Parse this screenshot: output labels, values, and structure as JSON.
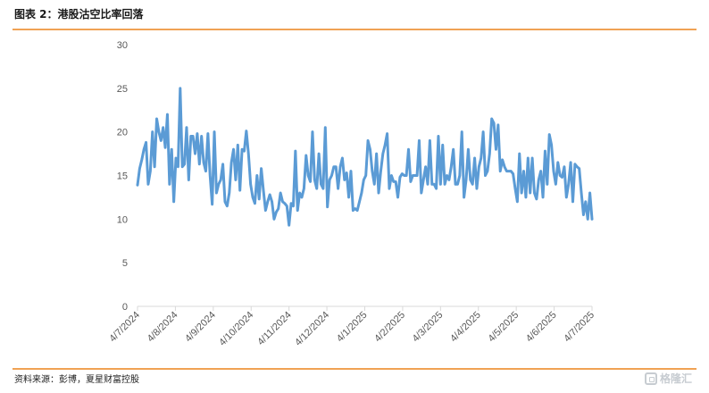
{
  "header": {
    "title": "图表 2：港股沽空比率回落"
  },
  "footer": {
    "source": "资料来源：彭博，夏星财富控股",
    "watermark": "格隆汇"
  },
  "colors": {
    "line": "#5b9bd5",
    "axis": "#d9d9d9",
    "rule": "#f0a254",
    "label": "#595959"
  },
  "chart_data": {
    "type": "line",
    "ylim": [
      0,
      30
    ],
    "yticks": [
      0,
      5,
      10,
      15,
      20,
      25,
      30
    ],
    "x_tick_labels": [
      "4/7/2024",
      "4/8/2024",
      "4/9/2024",
      "4/10/2024",
      "4/11/2024",
      "4/12/2024",
      "4/1/2025",
      "4/2/2025",
      "4/3/2025",
      "4/4/2025",
      "4/5/2025",
      "4/6/2025",
      "4/7/2025"
    ],
    "grid": false,
    "legend": "none",
    "series": [
      {
        "values": [
          13.9,
          15.8,
          16.8,
          18.0,
          18.8,
          14.0,
          15.5,
          20.0,
          16.0,
          21.5,
          20.0,
          19.0,
          20.5,
          18.2,
          22.0,
          14.0,
          18.0,
          12.0,
          17.0,
          16.0,
          25.0,
          16.0,
          16.3,
          20.5,
          14.5,
          19.5,
          19.5,
          17.5,
          19.8,
          16.3,
          19.5,
          16.5,
          15.5,
          19.8,
          15.0,
          11.7,
          20.0,
          13.0,
          14.0,
          14.5,
          16.3,
          12.0,
          11.5,
          13.0,
          16.5,
          18.0,
          14.5,
          18.5,
          13.3,
          18.0,
          17.8,
          20.1,
          17.5,
          14.0,
          12.5,
          11.8,
          15.0,
          12.3,
          15.8,
          13.3,
          11.0,
          12.0,
          12.8,
          12.0,
          10.0,
          10.8,
          11.2,
          13.0,
          12.0,
          11.8,
          11.5,
          9.3,
          11.8,
          11.5,
          17.8,
          11.0,
          13.0,
          12.5,
          13.5,
          17.3,
          15.0,
          14.3,
          20.0,
          14.5,
          13.5,
          17.5,
          14.0,
          13.5,
          20.5,
          11.4,
          14.5,
          15.0,
          16.0,
          16.0,
          13.5,
          16.0,
          17.0,
          14.5,
          15.3,
          12.5,
          15.5,
          11.0,
          11.2,
          11.0,
          12.0,
          13.0,
          14.5,
          15.0,
          19.0,
          18.0,
          15.5,
          14.0,
          17.5,
          13.0,
          15.5,
          17.5,
          18.5,
          19.8,
          13.5,
          15.0,
          14.3,
          14.3,
          12.5,
          14.8,
          15.2,
          15.0,
          15.0,
          18.0,
          14.3,
          15.0,
          15.0,
          15.0,
          19.0,
          13.0,
          14.5,
          16.0,
          14.0,
          19.0,
          14.0,
          14.0,
          13.5,
          19.5,
          14.0,
          18.5,
          14.0,
          15.0,
          14.5,
          16.0,
          18.0,
          14.0,
          14.0,
          15.0,
          20.0,
          12.5,
          14.5,
          18.0,
          14.5,
          14.0,
          17.0,
          13.5,
          16.0,
          17.0,
          20.0,
          15.0,
          15.5,
          17.5,
          21.5,
          21.0,
          18.0,
          20.8,
          15.5,
          16.8,
          16.0,
          15.5,
          15.5,
          15.5,
          15.2,
          13.5,
          12.0,
          17.5,
          13.0,
          15.5,
          12.5,
          17.0,
          13.0,
          17.0,
          13.0,
          12.3,
          14.5,
          15.5,
          12.5,
          17.8,
          14.0,
          19.7,
          18.5,
          15.5,
          14.0,
          16.5,
          15.0,
          14.8,
          16.0,
          12.5,
          14.0,
          16.5,
          12.0,
          16.3,
          16.0,
          15.8,
          13.0,
          10.5,
          12.0,
          10.0,
          13.0,
          10.0
        ]
      }
    ]
  }
}
